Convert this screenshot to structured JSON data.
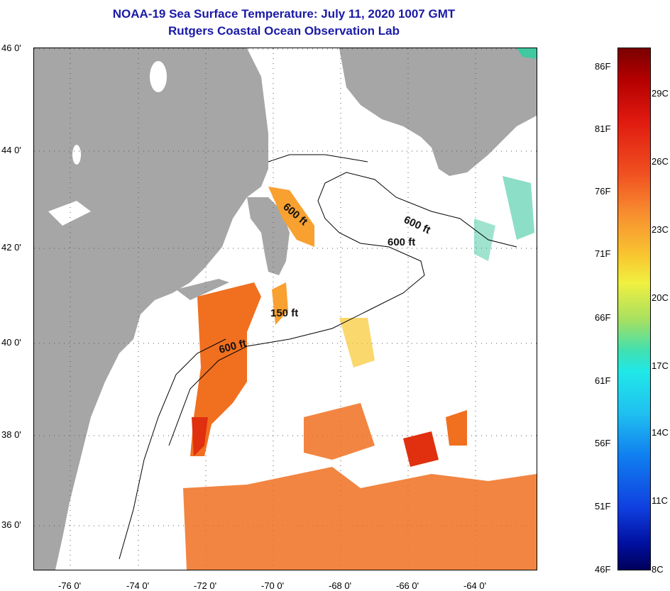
{
  "title_line1": "NOAA-19 Sea Surface Temperature:  July 11, 2020 1007 GMT",
  "title_line2": "Rutgers Coastal Ocean Observation Lab",
  "lat_labels": [
    "46 0'",
    "44 0'",
    "42 0'",
    "40 0'",
    "38 0'",
    "36 0'"
  ],
  "lon_labels": [
    "-76 0'",
    "-74 0'",
    "-72 0'",
    "-70 0'",
    "-68 0'",
    "-66 0'",
    "-64 0'"
  ],
  "contour_labels": [
    "600 ft",
    "600 ft",
    "600 ft",
    "150 ft",
    "600 ft"
  ],
  "colorbar_f": [
    "86F",
    "81F",
    "76F",
    "71F",
    "66F",
    "61F",
    "56F",
    "51F",
    "46F"
  ],
  "colorbar_c": [
    "29C",
    "26C",
    "23C",
    "20C",
    "17C",
    "14C",
    "11C",
    "8C"
  ],
  "colors": {
    "title": "#1a1aa6",
    "land": "#a6a6a6",
    "sst_warm": "#f07020",
    "sst_hot": "#e03010",
    "sst_mild": "#f8a030",
    "sst_cool": "#40c8a0"
  }
}
